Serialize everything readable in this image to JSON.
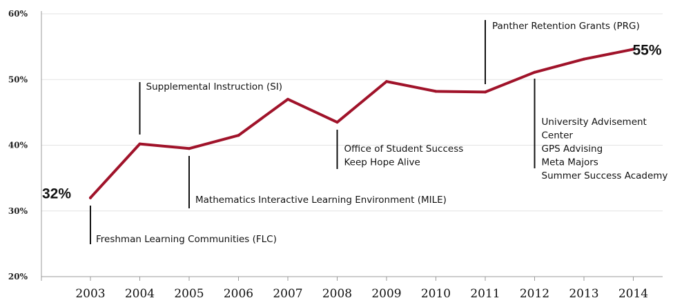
{
  "chart_data": {
    "type": "line",
    "x": [
      "2003",
      "2004",
      "2005",
      "2006",
      "2007",
      "2008",
      "2009",
      "2010",
      "2011",
      "2012",
      "2013",
      "2014"
    ],
    "series": [
      {
        "values": [
          32,
          40.2,
          39.5,
          41.5,
          47,
          43.5,
          49.7,
          48.2,
          48.1,
          51.1,
          53.1,
          54.6
        ]
      }
    ],
    "ylim": [
      20,
      60
    ],
    "yticks": [
      20,
      30,
      40,
      50,
      60
    ],
    "ytick_labels": [
      "20%",
      "30%",
      "40%",
      "50%",
      "60%"
    ],
    "line_color": "#a0132a",
    "start_label": "32%",
    "end_label": "55%",
    "annotations": [
      {
        "year": "2003",
        "lines": [
          "Freshman Learning Communities (FLC)"
        ]
      },
      {
        "year": "2004",
        "lines": [
          "Supplemental Instruction (SI)"
        ]
      },
      {
        "year": "2005",
        "lines": [
          "Mathematics Interactive Learning Environment (MILE)"
        ]
      },
      {
        "year": "2008",
        "lines": [
          "Office of Student Success",
          "Keep Hope Alive"
        ]
      },
      {
        "year": "2011",
        "lines": [
          "Panther Retention Grants (PRG)"
        ]
      },
      {
        "year": "2012",
        "lines": [
          "University Advisement",
          "Center",
          "GPS Advising",
          "Meta Majors",
          "Summer Success Academy"
        ]
      }
    ]
  }
}
